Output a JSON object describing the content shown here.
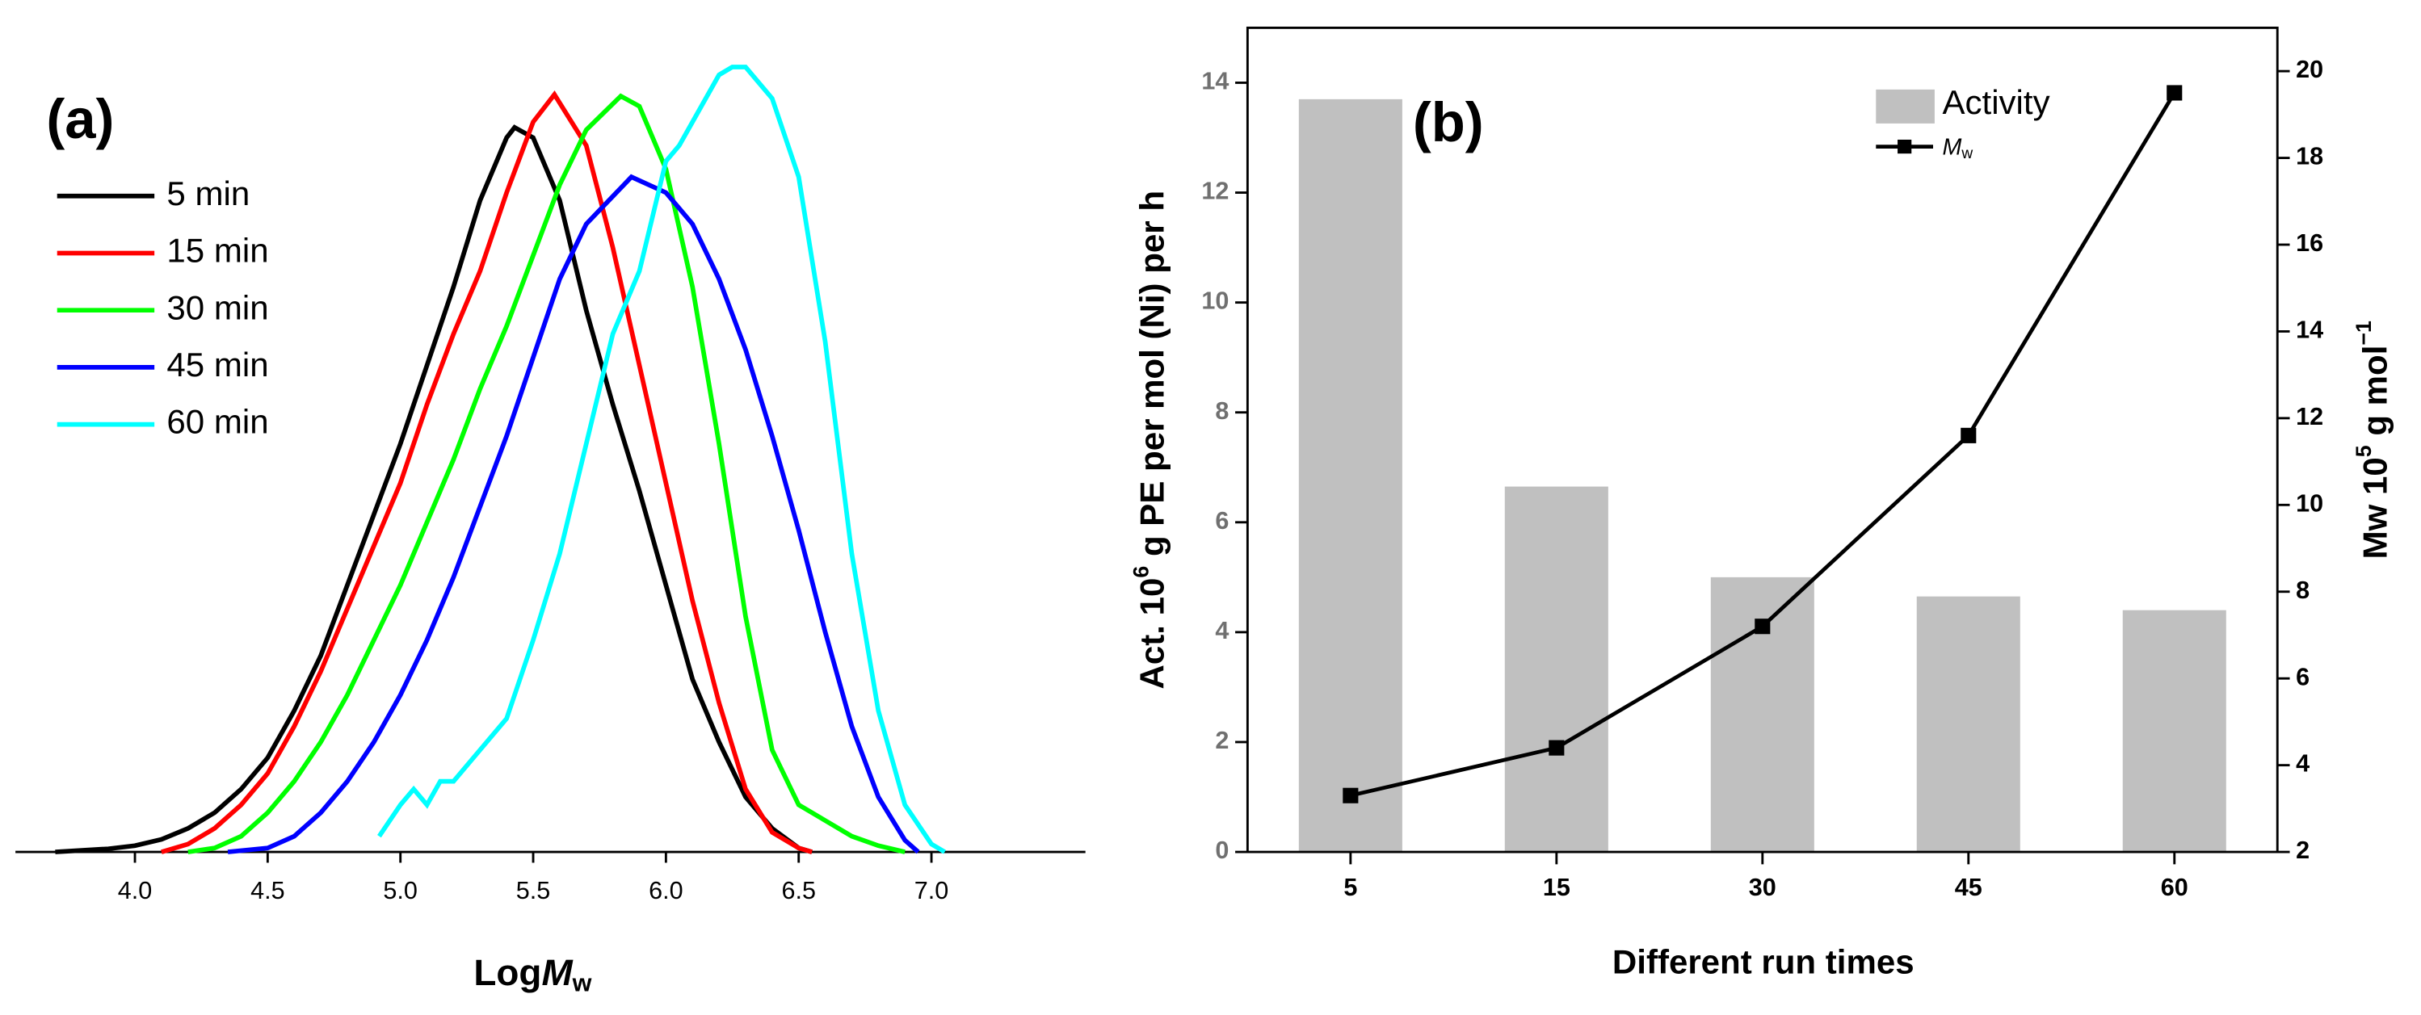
{
  "chart_data": [
    {
      "type": "line",
      "annotation": "(a)",
      "xlabel": [
        "Log",
        "M",
        "w"
      ],
      "xlim": [
        3.55,
        7.58
      ],
      "ylim": [
        0,
        1.05
      ],
      "xticks": [
        {
          "value": 4,
          "label": "4.0"
        },
        {
          "value": 4.5,
          "label": "4.5"
        },
        {
          "value": 5,
          "label": "5.0"
        },
        {
          "value": 5.5,
          "label": "5.5"
        },
        {
          "value": 6,
          "label": "6.0"
        },
        {
          "value": 6.5,
          "label": "6.5"
        },
        {
          "value": 7,
          "label": "7.0"
        }
      ],
      "legend": "upper left",
      "series": [
        {
          "name": "5 min",
          "color": "#000000",
          "x": [
            3.7,
            3.8,
            3.9,
            4.0,
            4.1,
            4.2,
            4.3,
            4.4,
            4.5,
            4.6,
            4.7,
            4.8,
            4.9,
            5.0,
            5.1,
            5.2,
            5.3,
            5.4,
            5.43,
            5.5,
            5.6,
            5.7,
            5.8,
            5.9,
            6.0,
            6.1,
            6.2,
            6.3,
            6.4,
            6.5,
            6.55
          ],
          "values": [
            0,
            0.002,
            0.004,
            0.008,
            0.016,
            0.03,
            0.05,
            0.08,
            0.12,
            0.18,
            0.25,
            0.34,
            0.43,
            0.52,
            0.62,
            0.72,
            0.83,
            0.91,
            0.923,
            0.91,
            0.83,
            0.69,
            0.57,
            0.46,
            0.34,
            0.22,
            0.14,
            0.07,
            0.03,
            0.005,
            0
          ]
        },
        {
          "name": "15 min",
          "color": "#ff0000",
          "x": [
            4.1,
            4.2,
            4.3,
            4.4,
            4.5,
            4.6,
            4.7,
            4.8,
            4.9,
            5.0,
            5.1,
            5.2,
            5.3,
            5.4,
            5.5,
            5.58,
            5.7,
            5.8,
            5.9,
            6.0,
            6.1,
            6.2,
            6.3,
            6.4,
            6.5,
            6.55
          ],
          "values": [
            0,
            0.01,
            0.03,
            0.06,
            0.1,
            0.16,
            0.23,
            0.31,
            0.39,
            0.47,
            0.57,
            0.66,
            0.74,
            0.84,
            0.93,
            0.965,
            0.9,
            0.77,
            0.62,
            0.47,
            0.32,
            0.19,
            0.08,
            0.025,
            0.005,
            0
          ]
        },
        {
          "name": "30 min",
          "color": "#00ff00",
          "x": [
            4.2,
            4.3,
            4.4,
            4.5,
            4.6,
            4.7,
            4.8,
            4.9,
            5.0,
            5.1,
            5.2,
            5.3,
            5.4,
            5.5,
            5.6,
            5.7,
            5.83,
            5.9,
            6.0,
            6.1,
            6.2,
            6.3,
            6.4,
            6.5,
            6.6,
            6.7,
            6.8,
            6.9
          ],
          "values": [
            0,
            0.005,
            0.02,
            0.05,
            0.09,
            0.14,
            0.2,
            0.27,
            0.34,
            0.42,
            0.5,
            0.59,
            0.67,
            0.76,
            0.85,
            0.92,
            0.963,
            0.95,
            0.87,
            0.72,
            0.52,
            0.3,
            0.13,
            0.06,
            0.04,
            0.02,
            0.008,
            0
          ]
        },
        {
          "name": "45 min",
          "color": "#0000ff",
          "x": [
            4.35,
            4.5,
            4.6,
            4.7,
            4.8,
            4.9,
            5.0,
            5.1,
            5.2,
            5.3,
            5.4,
            5.5,
            5.6,
            5.7,
            5.87,
            6.0,
            6.1,
            6.2,
            6.3,
            6.4,
            6.5,
            6.6,
            6.7,
            6.8,
            6.9,
            6.95
          ],
          "values": [
            0,
            0.005,
            0.02,
            0.05,
            0.09,
            0.14,
            0.2,
            0.27,
            0.35,
            0.44,
            0.53,
            0.63,
            0.73,
            0.8,
            0.86,
            0.84,
            0.8,
            0.73,
            0.64,
            0.53,
            0.41,
            0.28,
            0.16,
            0.07,
            0.015,
            0
          ]
        },
        {
          "name": "60 min",
          "color": "#00ffff",
          "x": [
            4.92,
            5.0,
            5.05,
            5.1,
            5.15,
            5.2,
            5.3,
            5.4,
            5.5,
            5.6,
            5.7,
            5.8,
            5.9,
            6.0,
            6.05,
            6.1,
            6.2,
            6.25,
            6.3,
            6.4,
            6.5,
            6.6,
            6.7,
            6.8,
            6.9,
            7.0,
            7.05
          ],
          "values": [
            0.02,
            0.06,
            0.08,
            0.06,
            0.09,
            0.09,
            0.13,
            0.17,
            0.27,
            0.38,
            0.52,
            0.66,
            0.74,
            0.88,
            0.9,
            0.93,
            0.99,
            1.0,
            1.0,
            0.96,
            0.86,
            0.65,
            0.38,
            0.18,
            0.06,
            0.01,
            0
          ]
        }
      ]
    },
    {
      "type": "bar",
      "annotation": "(b)",
      "xlabel": "Different run times",
      "ylabel": [
        "Act. 10",
        "6",
        " g PE per mol (Ni) per h"
      ],
      "y2label": [
        "Mw 10",
        "5",
        " g mol",
        "−1"
      ],
      "categories": [
        "5",
        "15",
        "30",
        "45",
        "60"
      ],
      "ylim": [
        0,
        15
      ],
      "yticks": [
        0,
        2,
        4,
        6,
        8,
        10,
        12,
        14
      ],
      "y2lim": [
        2,
        21
      ],
      "y2ticks": [
        2,
        4,
        6,
        8,
        10,
        12,
        14,
        16,
        18,
        20
      ],
      "legend": "upper right",
      "series": [
        {
          "name": "Activity",
          "color": "#c0c0c0",
          "values": [
            13.7,
            6.65,
            5.0,
            4.65,
            4.4
          ]
        },
        {
          "name": "M",
          "name_subscript": "w",
          "color": "#000000",
          "axis": "y2",
          "values": [
            3.3,
            4.4,
            7.2,
            11.6,
            19.5
          ]
        }
      ]
    }
  ]
}
